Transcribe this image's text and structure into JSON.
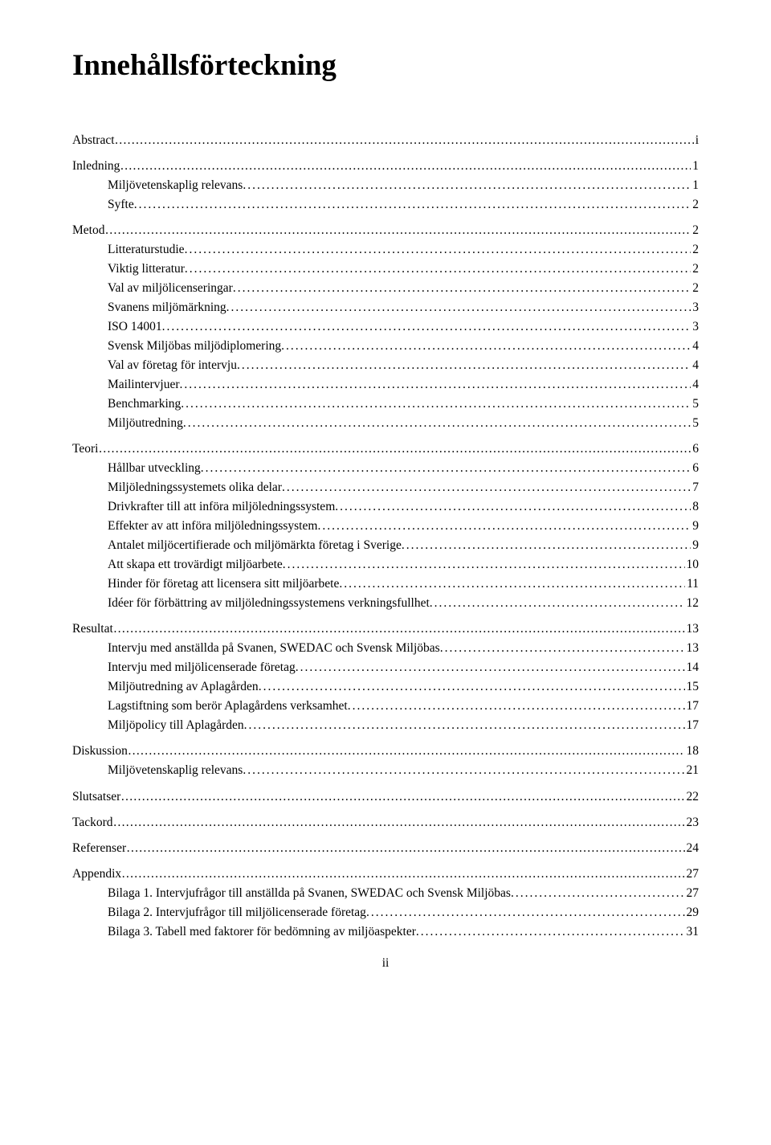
{
  "title": "Innehållsförteckning",
  "page_number": "ii",
  "entries": [
    {
      "level": 0,
      "label": "Abstract",
      "leader": "dashes",
      "page": "i"
    },
    {
      "level": 0,
      "label": "Inledning",
      "leader": "dotsrun",
      "page": "1"
    },
    {
      "level": 1,
      "label": "Miljövetenskaplig relevans",
      "leader": "dots",
      "page": " 1"
    },
    {
      "level": 1,
      "label": "Syfte",
      "leader": "dots",
      "page": " 2"
    },
    {
      "level": 0,
      "label": "Metod",
      "leader": "dashes",
      "page": "2"
    },
    {
      "level": 1,
      "label": "Litteraturstudie",
      "leader": "dots",
      "page": " 2"
    },
    {
      "level": 1,
      "label": "Viktig litteratur",
      "leader": "dots",
      "page": " 2"
    },
    {
      "level": 1,
      "label": "Val av miljölicenseringar",
      "leader": "dots",
      "page": " 2"
    },
    {
      "level": 1,
      "label": "Svanens miljömärkning",
      "leader": "dots",
      "page": " 3"
    },
    {
      "level": 1,
      "label": "ISO 14001",
      "leader": "dots",
      "page": " 3"
    },
    {
      "level": 1,
      "label": "Svensk Miljöbas miljödiplomering",
      "leader": "dots",
      "page": " 4"
    },
    {
      "level": 1,
      "label": "Val av företag för intervju",
      "leader": "dots",
      "page": " 4"
    },
    {
      "level": 1,
      "label": "Mailintervjuer",
      "leader": "dots",
      "page": " 4"
    },
    {
      "level": 1,
      "label": "Benchmarking",
      "leader": "dots",
      "page": " 5"
    },
    {
      "level": 1,
      "label": "Miljöutredning",
      "leader": "dots",
      "page": " 5"
    },
    {
      "level": 0,
      "label": "Teori",
      "leader": "dashes",
      "page": "6"
    },
    {
      "level": 1,
      "label": "Hållbar utveckling",
      "leader": "dots",
      "page": " 6"
    },
    {
      "level": 1,
      "label": "Miljöledningssystemets olika delar",
      "leader": "dots",
      "page": " 7"
    },
    {
      "level": 1,
      "label": "Drivkrafter till att införa miljöledningssystem",
      "leader": "dots",
      "page": " 8"
    },
    {
      "level": 1,
      "label": "Effekter av att införa miljöledningssystem",
      "leader": "dots",
      "page": " 9"
    },
    {
      "level": 1,
      "label": "Antalet miljöcertifierade och miljömärkta företag i Sverige",
      "leader": "dots",
      "page": " 9"
    },
    {
      "level": 1,
      "label": "Att skapa ett trovärdigt miljöarbete",
      "leader": "dots",
      "page": " 10"
    },
    {
      "level": 1,
      "label": "Hinder för företag att licensera sitt miljöarbete",
      "leader": "dots",
      "page": " 11"
    },
    {
      "level": 1,
      "label": "Idéer för förbättring av miljöledningssystemens verkningsfullhet",
      "leader": "dots",
      "page": " 12"
    },
    {
      "level": 0,
      "label": "Resultat",
      "leader": "dashes",
      "page": "13"
    },
    {
      "level": 1,
      "label": "Intervju med anställda på Svanen, SWEDAC och Svensk Miljöbas",
      "leader": "dots",
      "page": " 13"
    },
    {
      "level": 1,
      "label": "Intervju med miljölicenserade företag",
      "leader": "dots",
      "page": " 14"
    },
    {
      "level": 1,
      "label": "Miljöutredning av Aplagården",
      "leader": "dots",
      "page": " 15"
    },
    {
      "level": 1,
      "label": "Lagstiftning som berör Aplagårdens verksamhet",
      "leader": "dots",
      "page": " 17"
    },
    {
      "level": 1,
      "label": "Miljöpolicy till Aplagården",
      "leader": "dots",
      "page": " 17"
    },
    {
      "level": 0,
      "label": "Diskussion",
      "leader": "dashes",
      "page": "18"
    },
    {
      "level": 1,
      "label": "Miljövetenskaplig relevans",
      "leader": "dots",
      "page": " 21"
    },
    {
      "level": 0,
      "label": "Slutsatser",
      "leader": "dashes",
      "page": "22"
    },
    {
      "level": 0,
      "label": "Tackord",
      "leader": "dotsrun",
      "page": "23"
    },
    {
      "level": 0,
      "label": "Referenser",
      "leader": "dotsrun",
      "page": "24"
    },
    {
      "level": 0,
      "label": "Appendix",
      "leader": "dashes",
      "page": "27"
    },
    {
      "level": 1,
      "label": "Bilaga 1. Intervjufrågor till anställda på Svanen, SWEDAC och Svensk Miljöbas",
      "leader": "dots",
      "page": " 27"
    },
    {
      "level": 1,
      "label": "Bilaga 2. Intervjufrågor till miljölicenserade företag",
      "leader": "dots",
      "page": " 29"
    },
    {
      "level": 1,
      "label": "Bilaga 3. Tabell med faktorer för bedömning av miljöaspekter",
      "leader": "dots",
      "page": " 31"
    }
  ]
}
